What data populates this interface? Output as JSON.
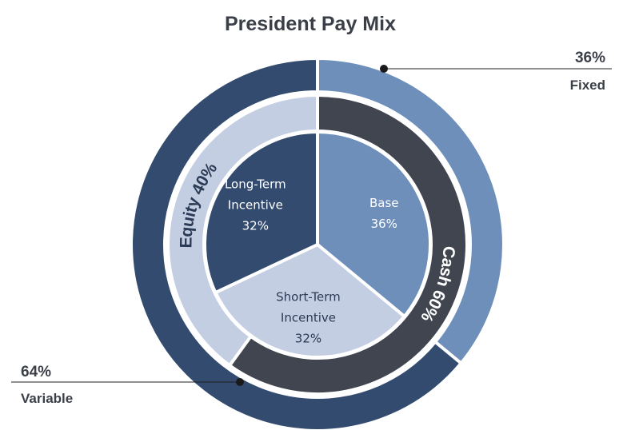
{
  "chart_data": {
    "type": "pie",
    "title": "President Pay Mix",
    "rings": [
      {
        "level": "outer",
        "slices": [
          {
            "name": "Fixed",
            "value": 36,
            "label": "36%",
            "color": "#6f8fbb"
          },
          {
            "name": "Variable",
            "value": 64,
            "label": "64%",
            "color": "#334b6f"
          }
        ]
      },
      {
        "level": "middle",
        "slices": [
          {
            "name": "Cash",
            "value": 60,
            "label": "Cash 60%",
            "color": "#40454f",
            "text_color": "#ffffff"
          },
          {
            "name": "Equity",
            "value": 40,
            "label": "Equity 40%",
            "color": "#c4cee2",
            "text_color": "#2b3a55"
          }
        ]
      },
      {
        "level": "inner",
        "slices": [
          {
            "name": "Base",
            "value": 36,
            "lines": [
              "Base",
              "36%"
            ],
            "color": "#6f8fbb",
            "text_color": "#ffffff"
          },
          {
            "name": "Short-Term Incentive",
            "value": 32,
            "lines": [
              "Short-Term",
              "Incentive",
              "32%"
            ],
            "color": "#c4cee2",
            "text_color": "#2b3a55"
          },
          {
            "name": "Long-Term Incentive",
            "value": 32,
            "lines": [
              "Long-Term",
              "Incentive",
              "32%"
            ],
            "color": "#334b6f",
            "text_color": "#ffffff"
          }
        ]
      }
    ],
    "callouts": [
      {
        "value": "36%",
        "name": "Fixed"
      },
      {
        "value": "64%",
        "name": "Variable"
      }
    ]
  }
}
